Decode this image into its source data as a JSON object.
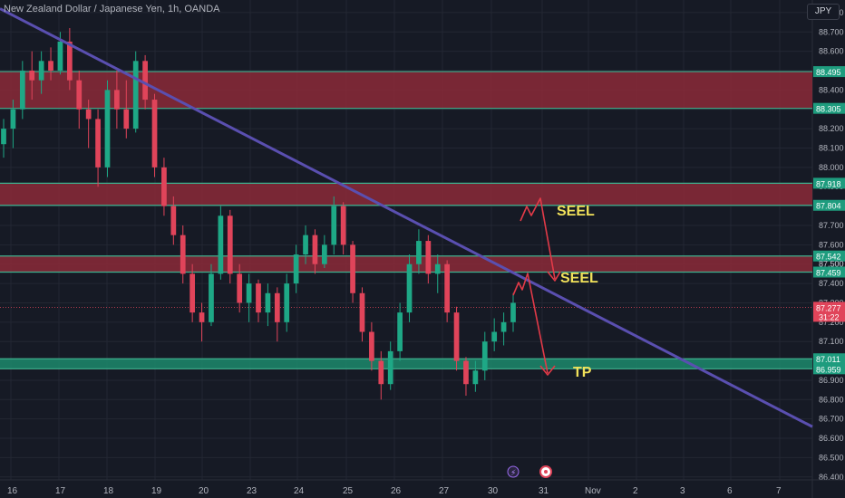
{
  "header": {
    "symbol_title": "New Zealand Dollar / Japanese Yen, 1h, OANDA",
    "currency": "JPY"
  },
  "colors": {
    "background": "#161a25",
    "grid": "#232733",
    "zone_red": "#8b2a38",
    "zone_green": "#1c8a6c",
    "trendline": "#5a4fb0",
    "up_candle": "#1ea886",
    "down_candle": "#e0445a",
    "annotation_text": "#f1e15a",
    "arrow": "#e23a48",
    "price_tag_green": "#1e9c7e",
    "price_tag_red": "#e0445a"
  },
  "chart_data": {
    "type": "candlestick",
    "y_axis": {
      "ticks": [
        "88.800",
        "88.700",
        "88.600",
        "88.500",
        "88.400",
        "88.300",
        "88.200",
        "88.100",
        "88.000",
        "87.900",
        "87.800",
        "87.700",
        "87.600",
        "87.500",
        "87.400",
        "87.300",
        "87.200",
        "87.100",
        "87.000",
        "86.900",
        "86.800",
        "86.700",
        "86.600",
        "86.500",
        "86.400"
      ],
      "range": [
        86.385,
        88.865
      ]
    },
    "x_axis": {
      "ticks": [
        "16",
        "17",
        "18",
        "19",
        "20",
        "23",
        "24",
        "25",
        "26",
        "27",
        "30",
        "31",
        "Nov",
        "2",
        "3",
        "6",
        "7"
      ]
    },
    "zones": [
      {
        "top": 88.495,
        "bottom": 88.305,
        "color": "red"
      },
      {
        "top": 87.918,
        "bottom": 87.804,
        "color": "red"
      },
      {
        "top": 87.542,
        "bottom": 87.459,
        "color": "red"
      },
      {
        "top": 87.011,
        "bottom": 86.959,
        "color": "green"
      }
    ],
    "price_labels": [
      {
        "text": "88.495",
        "value": 88.495,
        "color": "green"
      },
      {
        "text": "88.305",
        "value": 88.305,
        "color": "green"
      },
      {
        "text": "87.918",
        "value": 87.918,
        "color": "green"
      },
      {
        "text": "87.804",
        "value": 87.804,
        "color": "green"
      },
      {
        "text": "87.542",
        "value": 87.542,
        "color": "green"
      },
      {
        "text": "87.500",
        "value": 87.5,
        "color": "none"
      },
      {
        "text": "87.459",
        "value": 87.459,
        "color": "green"
      },
      {
        "text": "87.277",
        "value": 87.277,
        "color": "red",
        "sub": "31:22"
      },
      {
        "text": "87.011",
        "value": 87.011,
        "color": "green"
      },
      {
        "text": "86.959",
        "value": 86.959,
        "color": "green"
      }
    ],
    "current_price": 87.277,
    "countdown": "31:22",
    "trendline": {
      "start": {
        "x_day": "16",
        "y": 88.82
      },
      "end": {
        "y": 86.66
      }
    },
    "annotations": [
      {
        "text": "SEEL"
      },
      {
        "text": "SEEL"
      },
      {
        "text": "TP"
      }
    ],
    "candles": [
      {
        "o": 88.12,
        "h": 88.25,
        "l": 88.05,
        "c": 88.2
      },
      {
        "o": 88.2,
        "h": 88.35,
        "l": 88.1,
        "c": 88.3
      },
      {
        "o": 88.3,
        "h": 88.55,
        "l": 88.25,
        "c": 88.5
      },
      {
        "o": 88.5,
        "h": 88.6,
        "l": 88.35,
        "c": 88.45
      },
      {
        "o": 88.45,
        "h": 88.6,
        "l": 88.38,
        "c": 88.55
      },
      {
        "o": 88.55,
        "h": 88.62,
        "l": 88.45,
        "c": 88.5
      },
      {
        "o": 88.5,
        "h": 88.7,
        "l": 88.48,
        "c": 88.65
      },
      {
        "o": 88.65,
        "h": 88.72,
        "l": 88.4,
        "c": 88.45
      },
      {
        "o": 88.45,
        "h": 88.5,
        "l": 88.2,
        "c": 88.3
      },
      {
        "o": 88.3,
        "h": 88.35,
        "l": 88.1,
        "c": 88.25
      },
      {
        "o": 88.25,
        "h": 88.3,
        "l": 87.9,
        "c": 88.0
      },
      {
        "o": 88.0,
        "h": 88.45,
        "l": 87.95,
        "c": 88.4
      },
      {
        "o": 88.4,
        "h": 88.5,
        "l": 88.2,
        "c": 88.3
      },
      {
        "o": 88.3,
        "h": 88.45,
        "l": 88.15,
        "c": 88.2
      },
      {
        "o": 88.2,
        "h": 88.6,
        "l": 88.18,
        "c": 88.55
      },
      {
        "o": 88.55,
        "h": 88.58,
        "l": 88.3,
        "c": 88.35
      },
      {
        "o": 88.35,
        "h": 88.38,
        "l": 87.95,
        "c": 88.0
      },
      {
        "o": 88.0,
        "h": 88.05,
        "l": 87.75,
        "c": 87.8
      },
      {
        "o": 87.8,
        "h": 87.85,
        "l": 87.6,
        "c": 87.65
      },
      {
        "o": 87.65,
        "h": 87.7,
        "l": 87.4,
        "c": 87.45
      },
      {
        "o": 87.45,
        "h": 87.5,
        "l": 87.2,
        "c": 87.25
      },
      {
        "o": 87.25,
        "h": 87.3,
        "l": 87.1,
        "c": 87.2
      },
      {
        "o": 87.2,
        "h": 87.5,
        "l": 87.18,
        "c": 87.45
      },
      {
        "o": 87.45,
        "h": 87.8,
        "l": 87.42,
        "c": 87.75
      },
      {
        "o": 87.75,
        "h": 87.78,
        "l": 87.4,
        "c": 87.45
      },
      {
        "o": 87.45,
        "h": 87.5,
        "l": 87.25,
        "c": 87.3
      },
      {
        "o": 87.3,
        "h": 87.45,
        "l": 87.2,
        "c": 87.4
      },
      {
        "o": 87.4,
        "h": 87.42,
        "l": 87.2,
        "c": 87.25
      },
      {
        "o": 87.25,
        "h": 87.4,
        "l": 87.18,
        "c": 87.35
      },
      {
        "o": 87.35,
        "h": 87.38,
        "l": 87.1,
        "c": 87.2
      },
      {
        "o": 87.2,
        "h": 87.45,
        "l": 87.15,
        "c": 87.4
      },
      {
        "o": 87.4,
        "h": 87.6,
        "l": 87.35,
        "c": 87.55
      },
      {
        "o": 87.55,
        "h": 87.7,
        "l": 87.5,
        "c": 87.65
      },
      {
        "o": 87.65,
        "h": 87.68,
        "l": 87.45,
        "c": 87.5
      },
      {
        "o": 87.5,
        "h": 87.65,
        "l": 87.48,
        "c": 87.6
      },
      {
        "o": 87.6,
        "h": 87.85,
        "l": 87.55,
        "c": 87.8
      },
      {
        "o": 87.8,
        "h": 87.82,
        "l": 87.55,
        "c": 87.6
      },
      {
        "o": 87.6,
        "h": 87.62,
        "l": 87.3,
        "c": 87.35
      },
      {
        "o": 87.35,
        "h": 87.38,
        "l": 87.1,
        "c": 87.15
      },
      {
        "o": 87.15,
        "h": 87.2,
        "l": 86.95,
        "c": 87.0
      },
      {
        "o": 87.0,
        "h": 87.05,
        "l": 86.8,
        "c": 86.88
      },
      {
        "o": 86.88,
        "h": 87.1,
        "l": 86.85,
        "c": 87.05
      },
      {
        "o": 87.05,
        "h": 87.3,
        "l": 87.0,
        "c": 87.25
      },
      {
        "o": 87.25,
        "h": 87.55,
        "l": 87.2,
        "c": 87.5
      },
      {
        "o": 87.5,
        "h": 87.68,
        "l": 87.45,
        "c": 87.62
      },
      {
        "o": 87.62,
        "h": 87.65,
        "l": 87.4,
        "c": 87.45
      },
      {
        "o": 87.45,
        "h": 87.55,
        "l": 87.35,
        "c": 87.5
      },
      {
        "o": 87.5,
        "h": 87.52,
        "l": 87.2,
        "c": 87.25
      },
      {
        "o": 87.25,
        "h": 87.28,
        "l": 86.95,
        "c": 87.0
      },
      {
        "o": 87.0,
        "h": 87.02,
        "l": 86.82,
        "c": 86.88
      },
      {
        "o": 86.88,
        "h": 87.0,
        "l": 86.84,
        "c": 86.95
      },
      {
        "o": 86.95,
        "h": 87.15,
        "l": 86.9,
        "c": 87.1
      },
      {
        "o": 87.1,
        "h": 87.22,
        "l": 87.05,
        "c": 87.15
      },
      {
        "o": 87.15,
        "h": 87.25,
        "l": 87.08,
        "c": 87.2
      },
      {
        "o": 87.2,
        "h": 87.35,
        "l": 87.15,
        "c": 87.3
      }
    ]
  }
}
